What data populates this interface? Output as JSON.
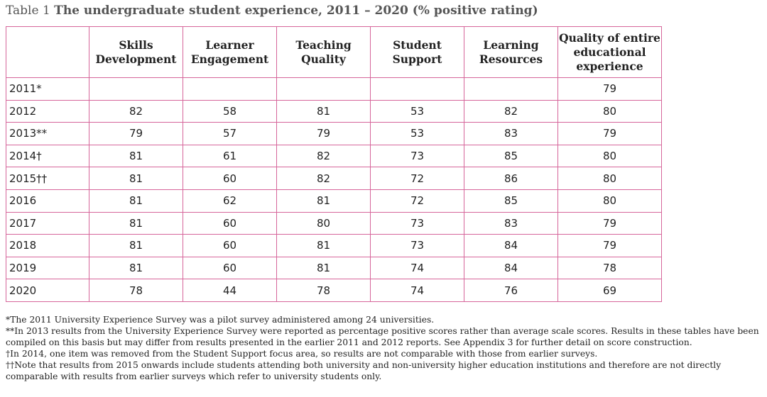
{
  "caption": {
    "label": "Table 1",
    "title": "The undergraduate student experience, 2011 – 2020 (% positive rating)"
  },
  "table": {
    "headers": [
      "",
      "Skills\nDevelopment",
      "Learner\nEngagement",
      "Teaching\nQuality",
      "Student\nSupport",
      "Learning\nResources",
      "Quality of entire\neducational\nexperience"
    ],
    "rows": [
      [
        "2011*",
        "",
        "",
        "",
        "",
        "",
        "79"
      ],
      [
        "2012",
        "82",
        "58",
        "81",
        "53",
        "82",
        "80"
      ],
      [
        "2013**",
        "79",
        "57",
        "79",
        "53",
        "83",
        "79"
      ],
      [
        "2014†",
        "81",
        "61",
        "82",
        "73",
        "85",
        "80"
      ],
      [
        "2015††",
        "81",
        "60",
        "82",
        "72",
        "86",
        "80"
      ],
      [
        "2016",
        "81",
        "62",
        "81",
        "72",
        "85",
        "80"
      ],
      [
        "2017",
        "81",
        "60",
        "80",
        "73",
        "83",
        "79"
      ],
      [
        "2018",
        "81",
        "60",
        "81",
        "73",
        "84",
        "79"
      ],
      [
        "2019",
        "81",
        "60",
        "81",
        "74",
        "84",
        "78"
      ],
      [
        "2020",
        "78",
        "44",
        "78",
        "74",
        "76",
        "69"
      ]
    ]
  },
  "notes": [
    "*The 2011 University Experience Survey was a pilot survey administered among 24 universities.",
    "**In 2013 results from the University Experience Survey were reported as percentage positive scores rather than average scale scores. Results in these tables have been compiled on this basis but may differ from results presented in the earlier 2011 and 2012 reports. See Appendix 3 for further detail on score construction.",
    "†In 2014, one item was removed from the Student Support focus area, so results are not comparable with those from earlier surveys.",
    "††Note that results from 2015 onwards include students attending both university and non-university higher education institutions and therefore are not directly comparable with results from earlier surveys which refer to university students only."
  ],
  "colors": {
    "table_border": "#d6659a",
    "caption_text": "#555555"
  }
}
